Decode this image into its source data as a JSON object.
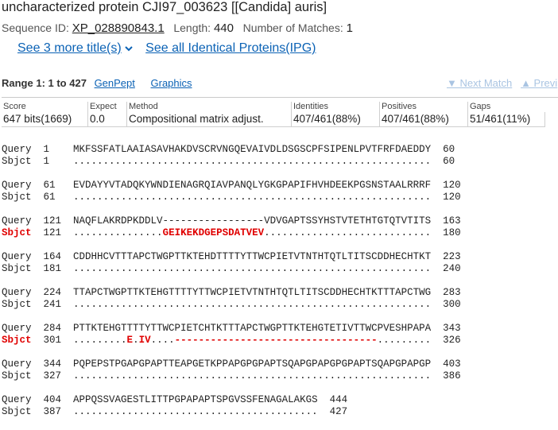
{
  "title": "uncharacterized protein CJI97_003623 [[Candida] auris]",
  "meta": {
    "seqid_label": "Sequence ID:",
    "seqid": "XP_028890843.1",
    "length_label": "Length:",
    "length": "440",
    "matches_label": "Number of Matches:",
    "matches": "1"
  },
  "links": {
    "more_titles": "See 3 more title(s)",
    "identical": "See all Identical Proteins(IPG)"
  },
  "range": {
    "label": "Range 1: 1 to 427",
    "genpept": "GenPept",
    "graphics": "Graphics",
    "next_match": "▼ Next Match",
    "prev_match": "▲ Previ"
  },
  "stats": {
    "headers": [
      "Score",
      "Expect",
      "Method",
      "Identities",
      "Positives",
      "Gaps"
    ],
    "values": [
      "647 bits(1669)",
      "0.0",
      "Compositional matrix adjust.",
      "407/461(88%)",
      "407/461(88%)",
      "51/461(11%)"
    ]
  },
  "alignment": [
    {
      "q_start": "1",
      "q_seq": "MKFSSFATLAAIASAVHAKDVSCRVNGQEVAIVDLDSGSCPFSIPENLPVTFRFDAEDDY",
      "q_end": "60",
      "s_start": "1",
      "s_seq": "............................................................",
      "s_end": "60",
      "s_red": false
    },
    {
      "q_start": "61",
      "q_seq": "EVDAYYVTADQKYWNDIENAGRQIAVPANQLYGKGPAPIFHVHDEEKPGSNSTAALRRRF",
      "q_end": "120",
      "s_start": "61",
      "s_seq": "............................................................",
      "s_end": "120",
      "s_red": false
    },
    {
      "q_start": "121",
      "q_seq": "NAQFLAKRDPKDDLV-----------------VDVGAPTSSYHSTVTETHTGTQTVTITS",
      "q_end": "163",
      "s_start": "121",
      "s_seq": "...............GEIKEKDGEPSDATVEV............................",
      "s_end": "180",
      "s_red": true
    },
    {
      "q_start": "164",
      "q_seq": "CDDHHCVTTTAPCTWGPTTKTEHDTTTTYTTWCPIETVTNTHTQTLTITSCDDHECHTKT",
      "q_end": "223",
      "s_start": "181",
      "s_seq": "............................................................",
      "s_end": "240",
      "s_red": false
    },
    {
      "q_start": "224",
      "q_seq": "TTAPCTWGPTTKTEHGTTTTYTTWCPIETVTNTHTQTLTITSCDDHECHTKTTTAPCTWG",
      "q_end": "283",
      "s_start": "241",
      "s_seq": "............................................................",
      "s_end": "300",
      "s_red": false
    },
    {
      "q_start": "284",
      "q_seq": "PTTKTEHGTTTTYTTWCPIETCHTKTTTAPCTWGPTTKTEHGTETIVTTWCPVESHPAPA",
      "q_end": "343",
      "s_start": "301",
      "s_seq": ".........E.IV....----------------------------------.........",
      "s_end": "326",
      "s_red": true
    },
    {
      "q_start": "344",
      "q_seq": "PQPEPSTPGAPGPAPTTEAPGETKPPAPGPGPAPTSQAPGPAPGPGPAPTSQAPGPAPGP",
      "q_end": "403",
      "s_start": "327",
      "s_seq": "............................................................",
      "s_end": "386",
      "s_red": false
    },
    {
      "q_start": "404",
      "q_seq": "APPQSSVAGESTLITTPGPAPAPTSPGVSSFENAGALAKGS",
      "q_end": "444",
      "s_start": "387",
      "s_seq": ".........................................",
      "s_end": "427",
      "s_red": false
    }
  ]
}
